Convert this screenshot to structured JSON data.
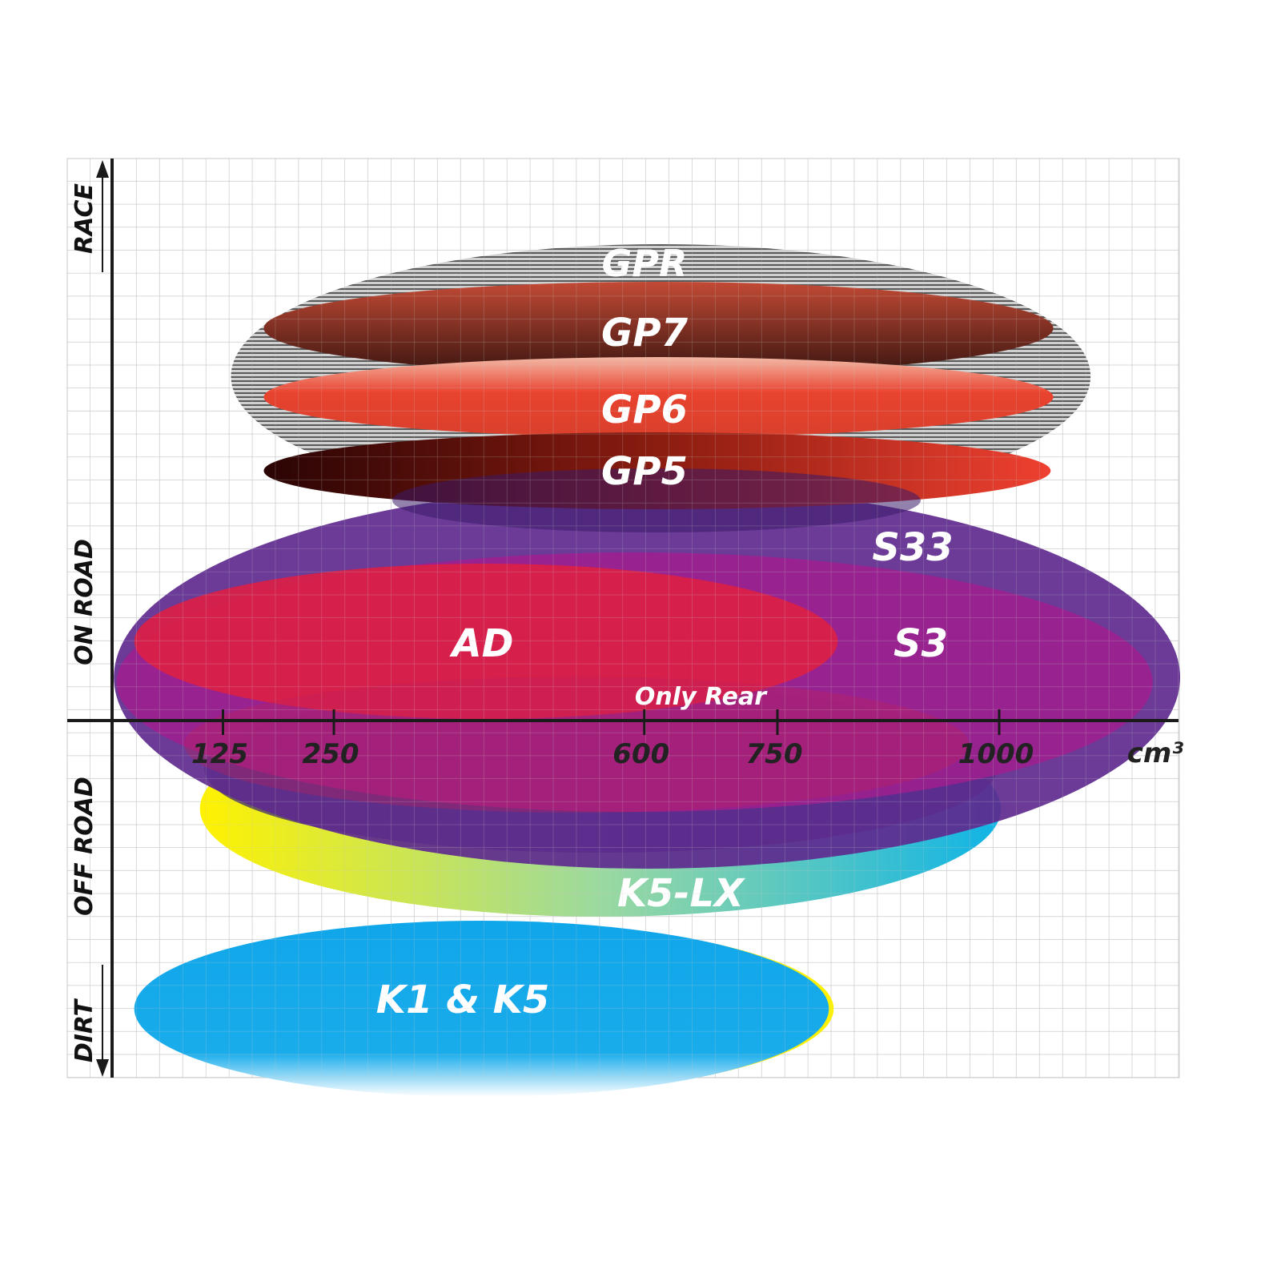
{
  "chart_data": {
    "type": "ellipse-range",
    "xlabel_unit": "cm³",
    "x_ticks": [
      125,
      250,
      600,
      750,
      1000
    ],
    "y_categories": [
      "RACE",
      "ON ROAD",
      "OFF ROAD",
      "DIRT"
    ],
    "grid": true,
    "series": [
      {
        "name": "GPR",
        "x_range": [
          134,
          1103
        ],
        "color": "#b0b0b0",
        "fill": "gray-stripes"
      },
      {
        "name": "GP7",
        "x_range": [
          171,
          1061
        ],
        "color": "#a84432"
      },
      {
        "name": "GP6",
        "x_range": [
          171,
          1061
        ],
        "color": "#e8432e"
      },
      {
        "name": "GP5",
        "x_range": [
          171,
          1058
        ],
        "color": "#6a0a0a"
      },
      {
        "name": "S33",
        "x_range": [
          2,
          1204
        ],
        "color": "#5e2a8e"
      },
      {
        "name": "S3",
        "x_range": [
          5,
          1173
        ],
        "color": "#a0208e"
      },
      {
        "name": "AD",
        "x_range": [
          25,
          818
        ],
        "color": "#de1f45"
      },
      {
        "name": "K5-LX",
        "x_range": [
          99,
          1002
        ],
        "color": "#1fb8e0"
      },
      {
        "name": "K1 & K5",
        "x_range": [
          25,
          808
        ],
        "color": "#12a8ea"
      }
    ],
    "annotations": [
      "Only Rear"
    ]
  }
}
